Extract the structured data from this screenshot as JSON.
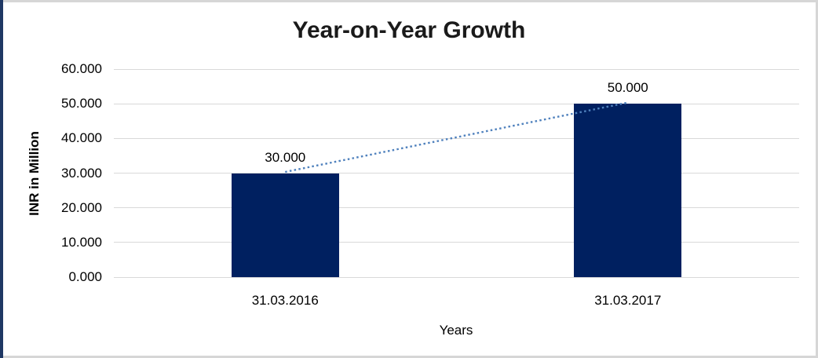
{
  "frame": {
    "accent_strip_color": "#1f3864",
    "border_color": "#d6d6d6",
    "background_color": "#ffffff"
  },
  "chart_data": {
    "type": "bar",
    "title": "Year-on-Year Growth",
    "xlabel": "Years",
    "ylabel": "INR in Million",
    "categories": [
      "31.03.2016",
      "31.03.2017"
    ],
    "values": [
      30,
      50
    ],
    "data_labels": [
      "30.000",
      "50.000"
    ],
    "ylim": [
      0,
      60
    ],
    "ytick_step": 10,
    "yticks": [
      "60.000",
      "50.000",
      "40.000",
      "30.000",
      "20.000",
      "10.000",
      "0.000"
    ],
    "grid": "horizontal",
    "legend_position": "none",
    "bar_color": "#002060",
    "gridline_color": "#d9d9d9",
    "trendline": {
      "type": "linear",
      "style": "dotted",
      "color": "#4f81bd",
      "points": [
        30,
        50
      ]
    }
  }
}
